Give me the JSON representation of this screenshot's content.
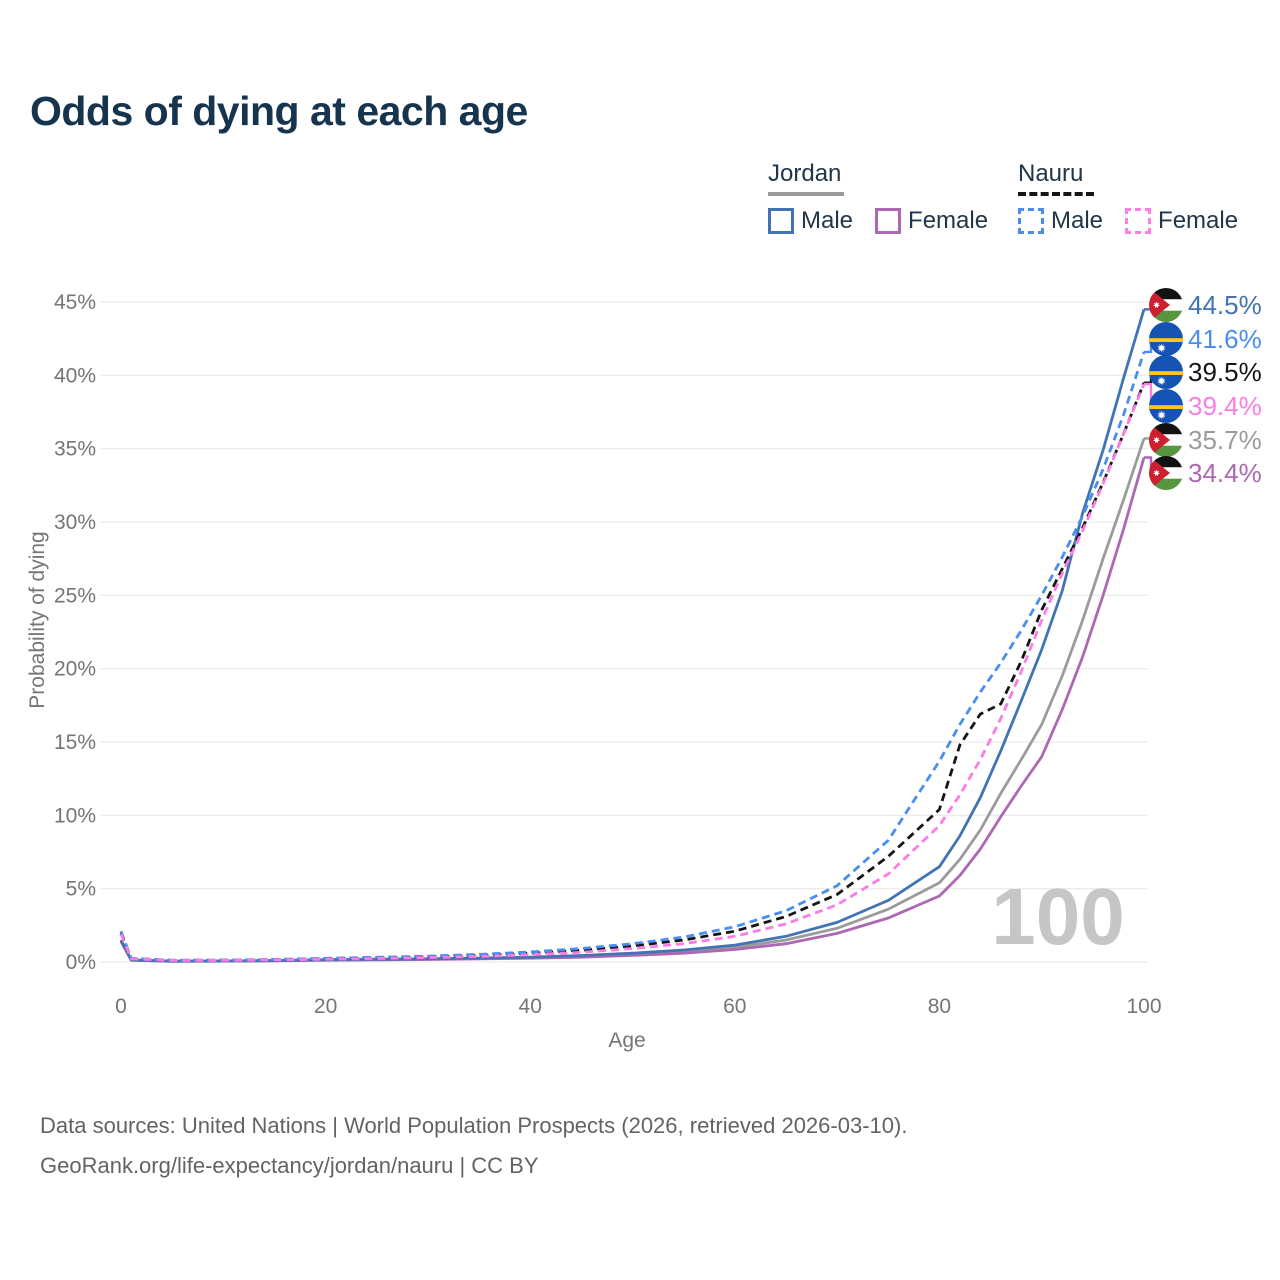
{
  "header": {
    "title": "Odds of dying at each age"
  },
  "legend": {
    "groups": [
      {
        "label": "Jordan",
        "line_style": "solid",
        "underline_color": "#9a9a9a",
        "items": [
          {
            "label": "Male",
            "color": "#4274b4"
          },
          {
            "label": "Female",
            "color": "#ac68b2"
          }
        ]
      },
      {
        "label": "Nauru",
        "line_style": "dashed",
        "underline_color": "#151515",
        "items": [
          {
            "label": "Male",
            "color": "#4a8df0"
          },
          {
            "label": "Female",
            "color": "#fa7de4"
          }
        ]
      }
    ]
  },
  "chart_data": {
    "type": "line",
    "title": "Odds of dying at each age",
    "xlabel": "Age",
    "ylabel": "Probability of dying",
    "xlim": [
      0,
      100
    ],
    "ylim": [
      0,
      45
    ],
    "x_tick_labels": [
      "0",
      "20",
      "40",
      "60",
      "80",
      "100"
    ],
    "y_tick_labels": [
      "0%",
      "5%",
      "10%",
      "15%",
      "20%",
      "25%",
      "30%",
      "35%",
      "40%",
      "45%"
    ],
    "grid": true,
    "legend_position": "top-right",
    "watermark": "100",
    "unit": "%",
    "ages": [
      0,
      1,
      5,
      10,
      15,
      20,
      25,
      30,
      35,
      40,
      45,
      50,
      55,
      60,
      65,
      70,
      75,
      80,
      82,
      84,
      86,
      88,
      90,
      92,
      94,
      96,
      98,
      100
    ],
    "series": [
      {
        "id": "jordan-male",
        "country": "Jordan",
        "sex": "Male",
        "color": "#4274b4",
        "dashed": false,
        "flag": "jordan",
        "end_label": "44.5%",
        "values": [
          1.5,
          0.14,
          0.06,
          0.07,
          0.1,
          0.16,
          0.19,
          0.22,
          0.27,
          0.33,
          0.44,
          0.6,
          0.82,
          1.15,
          1.75,
          2.7,
          4.2,
          6.5,
          8.6,
          11.2,
          14.4,
          17.8,
          21.3,
          25.3,
          30.6,
          34.9,
          39.8,
          44.5
        ]
      },
      {
        "id": "nauru-male",
        "country": "Nauru",
        "sex": "Male",
        "color": "#4a8df0",
        "dashed": true,
        "flag": "nauru",
        "end_label": "41.6%",
        "values": [
          2.1,
          0.25,
          0.12,
          0.13,
          0.18,
          0.25,
          0.32,
          0.4,
          0.52,
          0.68,
          0.92,
          1.25,
          1.7,
          2.4,
          3.5,
          5.2,
          8.3,
          13.7,
          16.2,
          18.4,
          20.4,
          22.6,
          25.0,
          27.6,
          30.4,
          33.6,
          37.3,
          41.6
        ]
      },
      {
        "id": "nauru-both",
        "country": "Nauru",
        "sex": "Both",
        "color": "#151515",
        "dashed": true,
        "flag": "nauru",
        "end_label": "39.5%",
        "values": [
          2.0,
          0.23,
          0.11,
          0.12,
          0.16,
          0.22,
          0.28,
          0.35,
          0.45,
          0.6,
          0.8,
          1.1,
          1.5,
          2.1,
          3.1,
          4.6,
          7.2,
          10.4,
          14.8,
          16.9,
          17.6,
          20.5,
          24.0,
          26.8,
          29.6,
          32.7,
          36.0,
          39.5
        ]
      },
      {
        "id": "nauru-female",
        "country": "Nauru",
        "sex": "Female",
        "color": "#fa7de4",
        "dashed": true,
        "flag": "nauru",
        "end_label": "39.4%",
        "values": [
          1.9,
          0.22,
          0.1,
          0.11,
          0.14,
          0.19,
          0.24,
          0.3,
          0.38,
          0.5,
          0.66,
          0.92,
          1.25,
          1.75,
          2.6,
          3.9,
          6.0,
          9.3,
          11.4,
          13.8,
          16.6,
          19.8,
          23.3,
          26.5,
          29.4,
          32.6,
          36.0,
          39.4
        ]
      },
      {
        "id": "jordan-both",
        "country": "Jordan",
        "sex": "Both",
        "color": "#9b9b9b",
        "dashed": false,
        "flag": "jordan",
        "end_label": "35.7%",
        "values": [
          1.45,
          0.13,
          0.055,
          0.065,
          0.09,
          0.14,
          0.17,
          0.2,
          0.24,
          0.3,
          0.39,
          0.53,
          0.72,
          1.0,
          1.5,
          2.3,
          3.6,
          5.4,
          7.0,
          9.0,
          11.5,
          13.8,
          16.2,
          19.5,
          23.3,
          27.5,
          31.5,
          35.7
        ]
      },
      {
        "id": "jordan-female",
        "country": "Jordan",
        "sex": "Female",
        "color": "#ac68b2",
        "dashed": false,
        "flag": "jordan",
        "end_label": "34.4%",
        "values": [
          1.4,
          0.12,
          0.05,
          0.06,
          0.08,
          0.12,
          0.14,
          0.17,
          0.21,
          0.26,
          0.33,
          0.45,
          0.6,
          0.85,
          1.25,
          1.95,
          3.0,
          4.5,
          5.9,
          7.7,
          9.9,
          12.0,
          14.0,
          17.2,
          20.8,
          25.0,
          29.5,
          34.4
        ]
      }
    ]
  },
  "footer": {
    "line1": "Data sources: United Nations | World Population Prospects (2026, retrieved 2026-03-10).",
    "line2": "GeoRank.org/life-expectancy/jordan/nauru | CC BY"
  }
}
